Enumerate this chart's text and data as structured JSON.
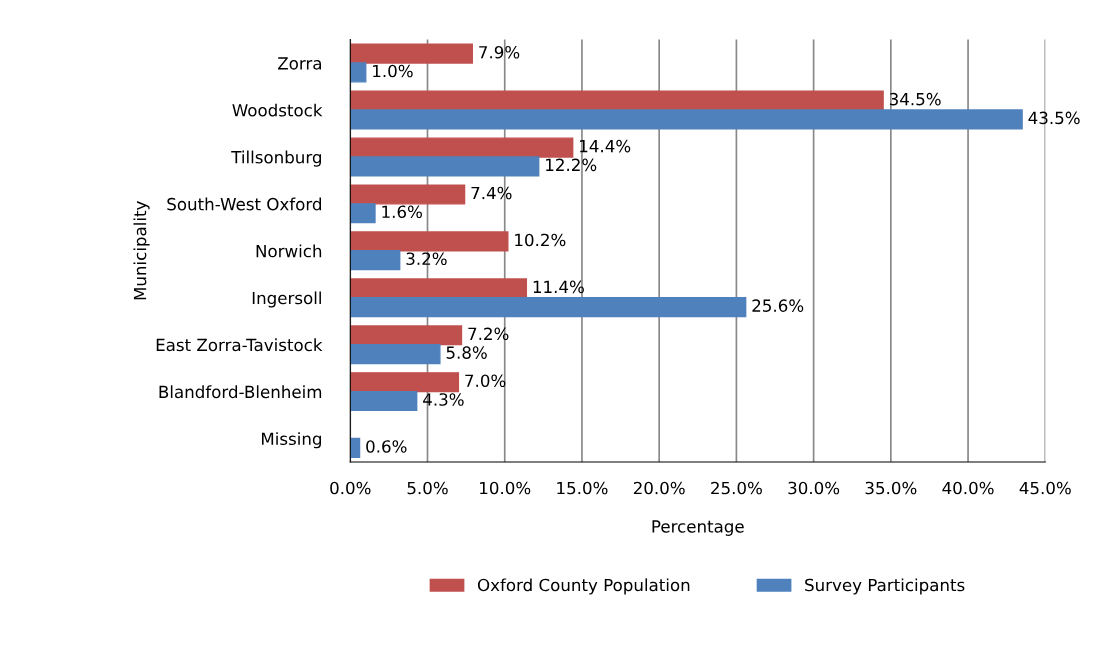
{
  "chart_data": {
    "type": "bar",
    "orientation": "horizontal",
    "categories": [
      "Zorra",
      "Woodstock",
      "Tillsonburg",
      "South-West Oxford",
      "Norwich",
      "Ingersoll",
      "East Zorra-Tavistock",
      "Blandford-Blenheim",
      "Missing"
    ],
    "series": [
      {
        "name": "Oxford County Population",
        "color": "#c0504d",
        "values": [
          7.9,
          34.5,
          14.4,
          7.4,
          10.2,
          11.4,
          7.2,
          7.0,
          null
        ],
        "value_labels": [
          "7.9%",
          "34.5%",
          "14.4%",
          "7.4%",
          "10.2%",
          "11.4%",
          "7.2%",
          "7.0%",
          null
        ]
      },
      {
        "name": "Survey Participants",
        "color": "#4f81bd",
        "values": [
          1.0,
          43.5,
          12.2,
          1.6,
          3.2,
          25.6,
          5.8,
          4.3,
          0.6
        ],
        "value_labels": [
          "1.0%",
          "43.5%",
          "12.2%",
          "1.6%",
          "3.2%",
          "25.6%",
          "5.8%",
          "4.3%",
          "0.6%"
        ]
      }
    ],
    "xlabel": "Percentage",
    "ylabel": "Municipality",
    "xlim": [
      0,
      45
    ],
    "xticks": [
      {
        "value": 0,
        "label": "0.0%"
      },
      {
        "value": 5,
        "label": "5.0%"
      },
      {
        "value": 10,
        "label": "10.0%"
      },
      {
        "value": 15,
        "label": "15.0%"
      },
      {
        "value": 20,
        "label": "20.0%"
      },
      {
        "value": 25,
        "label": "25.0%"
      },
      {
        "value": 30,
        "label": "30.0%"
      },
      {
        "value": 35,
        "label": "35.0%"
      },
      {
        "value": 40,
        "label": "40.0%"
      },
      {
        "value": 45,
        "label": "45.0%"
      }
    ],
    "grid": "x",
    "legend": "bottom"
  }
}
